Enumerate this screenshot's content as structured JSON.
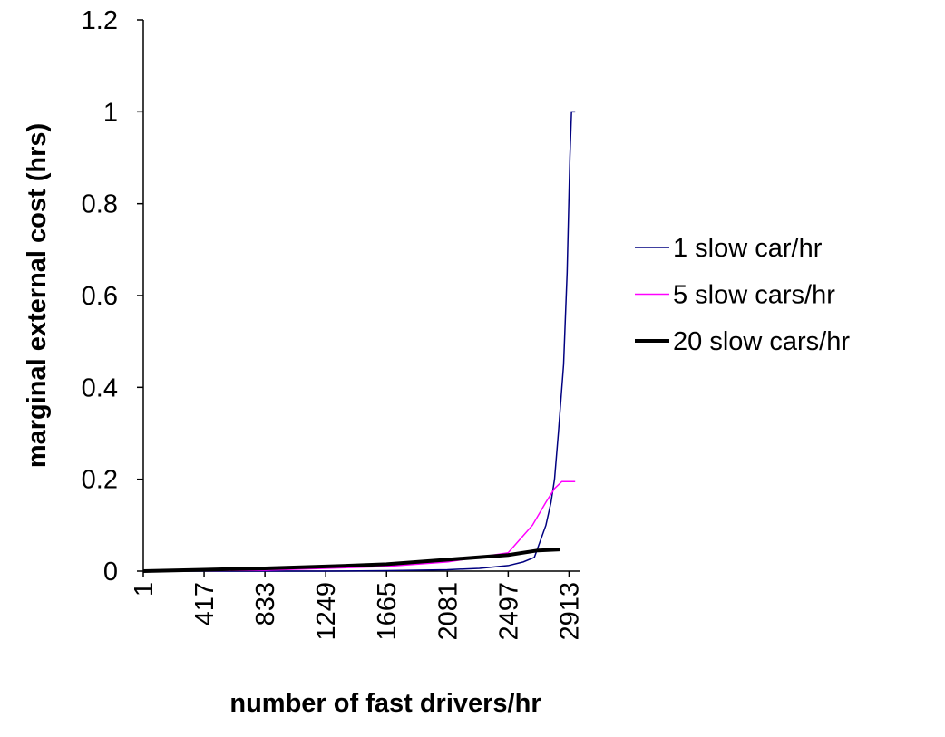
{
  "chart_data": {
    "type": "line",
    "xlabel": "number of fast drivers/hr",
    "ylabel": "marginal external cost (hrs)",
    "xlim": [
      1,
      2960
    ],
    "xticks": [
      1,
      417,
      833,
      1249,
      1665,
      2081,
      2497,
      2913
    ],
    "ylim": [
      0,
      1.2
    ],
    "yticks": [
      0,
      0.2,
      0.4,
      0.6,
      0.8,
      1,
      1.2
    ],
    "legend": "right",
    "series": [
      {
        "name": "1 slow car/hr",
        "color": "#000080",
        "width": 1.5,
        "x": [
          1,
          1249,
          1665,
          2081,
          2300,
          2497,
          2600,
          2676,
          2755,
          2790,
          2814,
          2840,
          2876,
          2900,
          2919,
          2930,
          2955
        ],
        "values": [
          0,
          0,
          0.001,
          0.003,
          0.006,
          0.012,
          0.02,
          0.03,
          0.1,
          0.15,
          0.2,
          0.3,
          0.45,
          0.65,
          0.9,
          1,
          1
        ]
      },
      {
        "name": "5 slow cars/hr",
        "color": "#ff00ff",
        "width": 1.5,
        "x": [
          1,
          833,
          1665,
          2081,
          2497,
          2552,
          2663,
          2755,
          2814,
          2864,
          2955
        ],
        "values": [
          0,
          0.002,
          0.01,
          0.02,
          0.04,
          0.06,
          0.1,
          0.15,
          0.18,
          0.195,
          0.195
        ]
      },
      {
        "name": "20 slow cars/hr",
        "color": "#000000",
        "width": 4,
        "x": [
          1,
          417,
          833,
          1249,
          1665,
          2081,
          2497,
          2700,
          2851
        ],
        "values": [
          0,
          0.003,
          0.006,
          0.01,
          0.015,
          0.025,
          0.035,
          0.045,
          0.047
        ]
      }
    ]
  }
}
